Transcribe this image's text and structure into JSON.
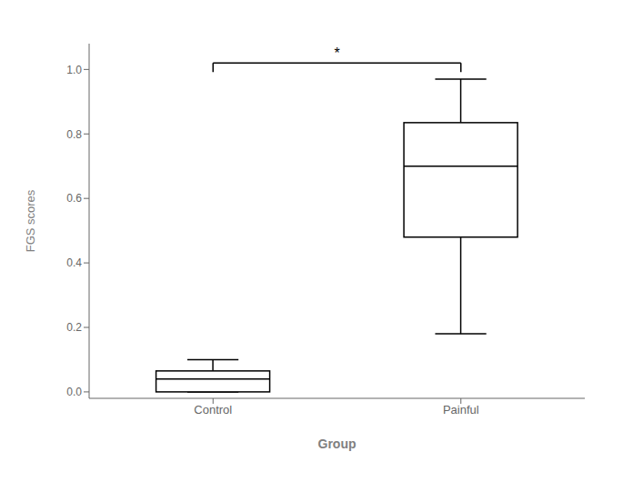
{
  "chart_data": {
    "type": "box",
    "categories": [
      "Control",
      "Painful"
    ],
    "xlabel": "Group",
    "ylabel": "FGS scores",
    "values": [
      {
        "q1": 0.0,
        "median": 0.04,
        "q3": 0.065,
        "whisker_low": 0.0,
        "whisker_high": 0.1
      },
      {
        "q1": 0.48,
        "median": 0.7,
        "q3": 0.835,
        "whisker_low": 0.18,
        "whisker_high": 0.97
      }
    ],
    "color": "#000000",
    "ylim": [
      -0.02,
      1.08
    ],
    "yticks": [
      {
        "value": 0.0,
        "label": "0.0"
      },
      0.2,
      0.4,
      0.6,
      0.8,
      {
        "value": 1.0,
        "label": "1.0"
      }
    ],
    "grid": false,
    "annotations": [
      {
        "text": "*",
        "x": [
          "Control",
          "Painful"
        ],
        "y": 1.02
      }
    ]
  }
}
